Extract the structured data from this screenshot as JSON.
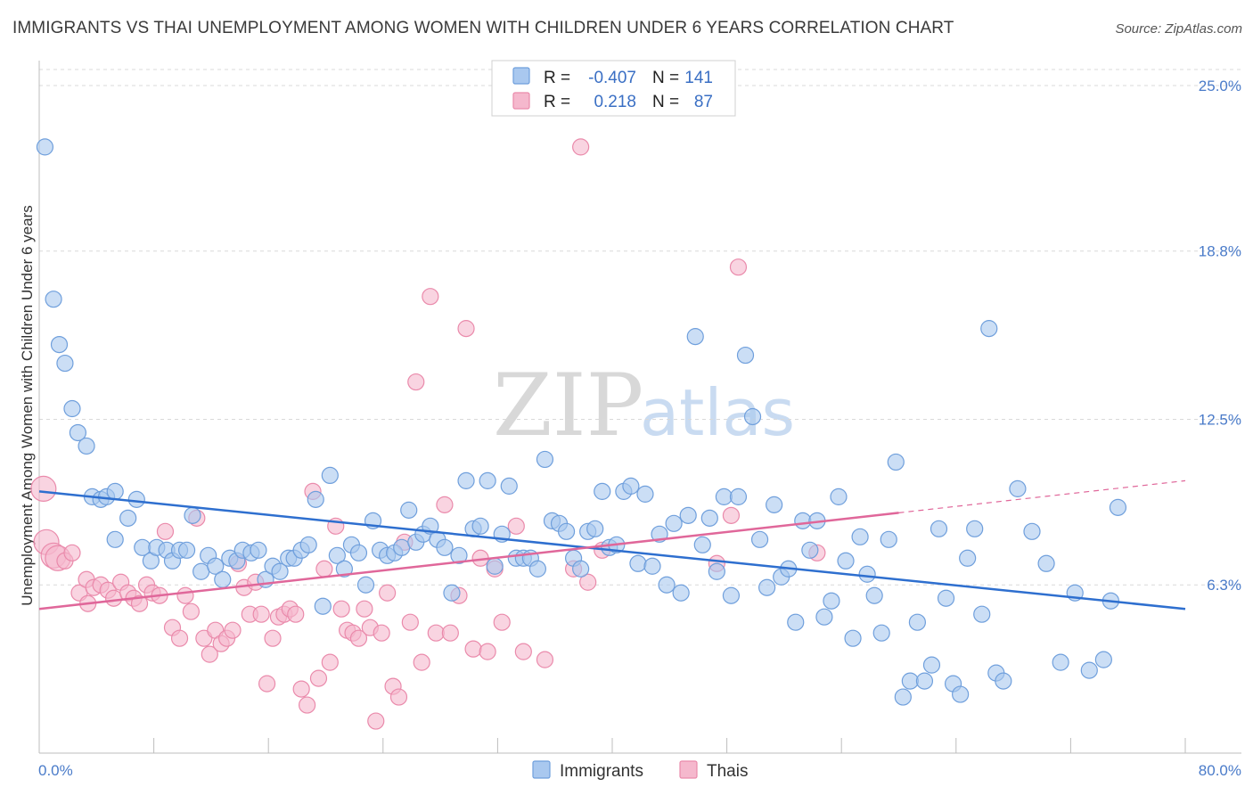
{
  "title": "IMMIGRANTS VS THAI UNEMPLOYMENT AMONG WOMEN WITH CHILDREN UNDER 6 YEARS CORRELATION CHART",
  "source": "Source: ZipAtlas.com",
  "watermark": {
    "zip": "ZIP",
    "atlas": "atlas"
  },
  "colors": {
    "immigrants_fill": "#a9c8ef",
    "immigrants_stroke": "#6f9fdc",
    "immigrants_line": "#2e6fcf",
    "thais_fill": "#f5b8cd",
    "thais_stroke": "#ea8aab",
    "thais_line": "#e0679a",
    "tick_text": "#4a7bc9",
    "grid": "#d9d9d9"
  },
  "legend_top": {
    "rows": [
      {
        "r_label": "R =",
        "r_value": "-0.407",
        "n_label": "N =",
        "n_value": "141"
      },
      {
        "r_label": "R =",
        "r_value": "0.218",
        "n_label": "N =",
        "n_value": "87"
      }
    ]
  },
  "legend_bottom": [
    "Immigrants",
    "Thais"
  ],
  "chart_data": {
    "type": "scatter",
    "title": "IMMIGRANTS VS THAI UNEMPLOYMENT AMONG WOMEN WITH CHILDREN UNDER 6 YEARS CORRELATION CHART",
    "xlabel": "",
    "ylabel": "Unemployment Among Women with Children Under 6 years",
    "xlim": [
      0,
      80
    ],
    "ylim": [
      0,
      25.6
    ],
    "x_tick_labels": [
      "0.0%",
      "80.0%"
    ],
    "y_ticks": [
      6.3,
      12.5,
      18.8,
      25.0
    ],
    "y_tick_labels": [
      "6.3%",
      "12.5%",
      "18.8%",
      "25.0%"
    ],
    "grid": "horizontal dashed",
    "legend": "top-center",
    "series": [
      {
        "name": "Immigrants",
        "R": -0.407,
        "N": 141,
        "trend": {
          "x": [
            0,
            80
          ],
          "y": [
            9.8,
            5.4
          ]
        },
        "points": [
          [
            0.4,
            22.7
          ],
          [
            1.0,
            17.0
          ],
          [
            1.4,
            15.3
          ],
          [
            1.8,
            14.6
          ],
          [
            2.3,
            12.9
          ],
          [
            2.7,
            12.0
          ],
          [
            3.3,
            11.5
          ],
          [
            3.7,
            9.6
          ],
          [
            4.3,
            9.5
          ],
          [
            4.7,
            9.6
          ],
          [
            5.3,
            9.8
          ],
          [
            5.3,
            8.0
          ],
          [
            6.2,
            8.8
          ],
          [
            6.8,
            9.5
          ],
          [
            7.2,
            7.7
          ],
          [
            7.8,
            7.2
          ],
          [
            8.2,
            7.7
          ],
          [
            8.9,
            7.6
          ],
          [
            9.3,
            7.2
          ],
          [
            9.8,
            7.6
          ],
          [
            10.3,
            7.6
          ],
          [
            10.7,
            8.9
          ],
          [
            11.3,
            6.8
          ],
          [
            11.8,
            7.4
          ],
          [
            12.3,
            7.0
          ],
          [
            12.8,
            6.5
          ],
          [
            13.3,
            7.3
          ],
          [
            13.8,
            7.2
          ],
          [
            14.2,
            7.6
          ],
          [
            14.8,
            7.5
          ],
          [
            15.3,
            7.6
          ],
          [
            15.8,
            6.5
          ],
          [
            16.3,
            7.0
          ],
          [
            16.8,
            6.8
          ],
          [
            17.4,
            7.3
          ],
          [
            17.8,
            7.3
          ],
          [
            18.3,
            7.6
          ],
          [
            18.8,
            7.8
          ],
          [
            19.3,
            9.5
          ],
          [
            19.8,
            5.5
          ],
          [
            20.3,
            10.4
          ],
          [
            20.8,
            7.4
          ],
          [
            21.3,
            6.9
          ],
          [
            21.8,
            7.8
          ],
          [
            22.3,
            7.5
          ],
          [
            22.8,
            6.3
          ],
          [
            23.3,
            8.7
          ],
          [
            23.8,
            7.6
          ],
          [
            24.3,
            7.4
          ],
          [
            24.8,
            7.5
          ],
          [
            25.3,
            7.7
          ],
          [
            25.8,
            9.1
          ],
          [
            26.3,
            7.9
          ],
          [
            26.8,
            8.2
          ],
          [
            27.3,
            8.5
          ],
          [
            27.8,
            8.0
          ],
          [
            28.3,
            7.7
          ],
          [
            28.8,
            6.0
          ],
          [
            29.3,
            7.4
          ],
          [
            29.8,
            10.2
          ],
          [
            30.3,
            8.4
          ],
          [
            30.8,
            8.5
          ],
          [
            31.3,
            10.2
          ],
          [
            31.8,
            7.0
          ],
          [
            32.3,
            8.2
          ],
          [
            32.8,
            10.0
          ],
          [
            33.3,
            7.3
          ],
          [
            33.8,
            7.3
          ],
          [
            34.3,
            7.3
          ],
          [
            34.8,
            6.9
          ],
          [
            35.3,
            11.0
          ],
          [
            35.8,
            8.7
          ],
          [
            36.3,
            8.6
          ],
          [
            36.8,
            8.3
          ],
          [
            37.3,
            7.3
          ],
          [
            37.8,
            6.9
          ],
          [
            38.3,
            8.3
          ],
          [
            38.8,
            8.4
          ],
          [
            39.3,
            9.8
          ],
          [
            39.8,
            7.7
          ],
          [
            40.3,
            7.8
          ],
          [
            40.8,
            9.8
          ],
          [
            41.3,
            10.0
          ],
          [
            41.8,
            7.1
          ],
          [
            42.3,
            9.7
          ],
          [
            42.8,
            7.0
          ],
          [
            43.3,
            8.2
          ],
          [
            43.8,
            6.3
          ],
          [
            44.3,
            8.6
          ],
          [
            44.8,
            6.0
          ],
          [
            45.3,
            8.9
          ],
          [
            45.8,
            15.6
          ],
          [
            46.3,
            7.8
          ],
          [
            46.8,
            8.8
          ],
          [
            47.3,
            6.8
          ],
          [
            47.8,
            9.6
          ],
          [
            48.3,
            5.9
          ],
          [
            48.8,
            9.6
          ],
          [
            49.3,
            14.9
          ],
          [
            49.8,
            12.6
          ],
          [
            50.3,
            8.0
          ],
          [
            50.8,
            6.2
          ],
          [
            51.3,
            9.3
          ],
          [
            51.8,
            6.6
          ],
          [
            52.3,
            6.9
          ],
          [
            52.8,
            4.9
          ],
          [
            53.3,
            8.7
          ],
          [
            53.8,
            7.6
          ],
          [
            54.3,
            8.7
          ],
          [
            54.8,
            5.1
          ],
          [
            55.3,
            5.7
          ],
          [
            55.8,
            9.6
          ],
          [
            56.3,
            7.2
          ],
          [
            56.8,
            4.3
          ],
          [
            57.3,
            8.1
          ],
          [
            57.8,
            6.7
          ],
          [
            58.3,
            5.9
          ],
          [
            58.8,
            4.5
          ],
          [
            59.3,
            8.0
          ],
          [
            59.8,
            10.9
          ],
          [
            60.3,
            2.1
          ],
          [
            60.8,
            2.7
          ],
          [
            61.3,
            4.9
          ],
          [
            61.8,
            2.7
          ],
          [
            62.3,
            3.3
          ],
          [
            62.8,
            8.4
          ],
          [
            63.3,
            5.8
          ],
          [
            63.8,
            2.6
          ],
          [
            64.3,
            2.2
          ],
          [
            64.8,
            7.3
          ],
          [
            65.3,
            8.4
          ],
          [
            65.8,
            5.2
          ],
          [
            66.3,
            15.9
          ],
          [
            66.8,
            3.0
          ],
          [
            67.3,
            2.7
          ],
          [
            68.3,
            9.9
          ],
          [
            69.3,
            8.3
          ],
          [
            70.3,
            7.1
          ],
          [
            71.3,
            3.4
          ],
          [
            72.3,
            6.0
          ],
          [
            73.3,
            3.1
          ],
          [
            74.3,
            3.5
          ],
          [
            74.8,
            5.7
          ],
          [
            75.3,
            9.2
          ]
        ]
      },
      {
        "name": "Thais",
        "R": 0.218,
        "N": 87,
        "trend": {
          "x": [
            0,
            60
          ],
          "y": [
            5.4,
            9.0
          ]
        },
        "trend_extension": {
          "x": [
            60,
            80
          ],
          "y": [
            9.0,
            10.2
          ]
        },
        "points": [
          [
            0.3,
            9.9
          ],
          [
            0.5,
            7.9
          ],
          [
            1.0,
            7.4
          ],
          [
            1.3,
            7.3
          ],
          [
            1.8,
            7.2
          ],
          [
            2.3,
            7.5
          ],
          [
            2.8,
            6.0
          ],
          [
            3.3,
            6.5
          ],
          [
            3.4,
            5.6
          ],
          [
            3.8,
            6.2
          ],
          [
            4.3,
            6.3
          ],
          [
            4.8,
            6.1
          ],
          [
            5.2,
            5.8
          ],
          [
            5.7,
            6.4
          ],
          [
            6.2,
            6.0
          ],
          [
            6.6,
            5.8
          ],
          [
            7.0,
            5.6
          ],
          [
            7.5,
            6.3
          ],
          [
            7.9,
            6.0
          ],
          [
            8.4,
            5.9
          ],
          [
            8.8,
            8.3
          ],
          [
            9.3,
            4.7
          ],
          [
            9.8,
            4.3
          ],
          [
            10.2,
            5.9
          ],
          [
            10.6,
            5.3
          ],
          [
            11.0,
            8.8
          ],
          [
            11.5,
            4.3
          ],
          [
            11.9,
            3.7
          ],
          [
            12.3,
            4.6
          ],
          [
            12.7,
            4.1
          ],
          [
            13.1,
            4.3
          ],
          [
            13.5,
            4.6
          ],
          [
            13.9,
            7.1
          ],
          [
            14.3,
            6.2
          ],
          [
            14.7,
            5.2
          ],
          [
            15.1,
            6.4
          ],
          [
            15.5,
            5.2
          ],
          [
            15.9,
            2.6
          ],
          [
            16.3,
            4.3
          ],
          [
            16.7,
            5.1
          ],
          [
            17.1,
            5.2
          ],
          [
            17.5,
            5.4
          ],
          [
            17.9,
            5.2
          ],
          [
            18.3,
            2.4
          ],
          [
            18.7,
            1.8
          ],
          [
            19.1,
            9.8
          ],
          [
            19.5,
            2.8
          ],
          [
            19.9,
            6.9
          ],
          [
            20.3,
            3.4
          ],
          [
            20.7,
            8.5
          ],
          [
            21.1,
            5.4
          ],
          [
            21.5,
            4.6
          ],
          [
            21.9,
            4.5
          ],
          [
            22.3,
            4.3
          ],
          [
            22.7,
            5.4
          ],
          [
            23.1,
            4.7
          ],
          [
            23.5,
            1.2
          ],
          [
            23.9,
            4.5
          ],
          [
            24.3,
            6.0
          ],
          [
            24.7,
            2.5
          ],
          [
            25.1,
            2.1
          ],
          [
            25.5,
            7.9
          ],
          [
            25.9,
            4.9
          ],
          [
            26.3,
            13.9
          ],
          [
            26.7,
            3.4
          ],
          [
            27.3,
            17.1
          ],
          [
            27.7,
            4.5
          ],
          [
            28.3,
            9.3
          ],
          [
            28.7,
            4.5
          ],
          [
            29.3,
            5.9
          ],
          [
            29.8,
            15.9
          ],
          [
            30.3,
            3.9
          ],
          [
            30.8,
            7.3
          ],
          [
            31.3,
            3.8
          ],
          [
            31.8,
            6.9
          ],
          [
            32.3,
            4.9
          ],
          [
            33.3,
            8.5
          ],
          [
            33.8,
            3.8
          ],
          [
            35.3,
            3.5
          ],
          [
            37.3,
            6.9
          ],
          [
            37.8,
            22.7
          ],
          [
            38.3,
            6.4
          ],
          [
            39.3,
            7.6
          ],
          [
            47.3,
            7.1
          ],
          [
            48.3,
            8.9
          ],
          [
            48.8,
            18.2
          ],
          [
            54.3,
            7.5
          ]
        ]
      }
    ]
  }
}
